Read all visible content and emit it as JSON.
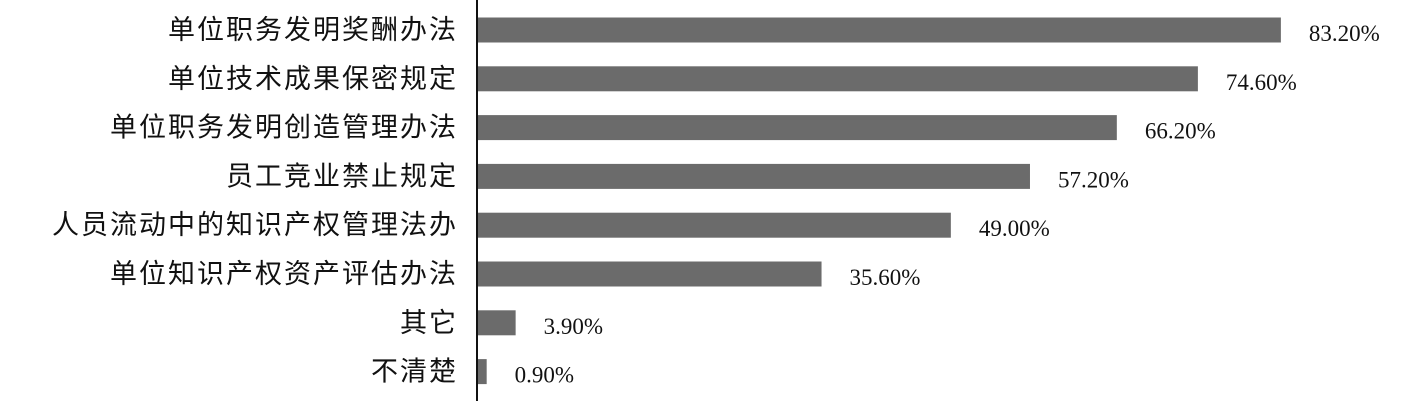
{
  "chart_data": {
    "type": "bar",
    "orientation": "horizontal",
    "categories": [
      "单位职务发明奖酬办法",
      "单位技术成果保密规定",
      "单位职务发明创造管理办法",
      "员工竞业禁止规定",
      "人员流动中的知识产权管理法办",
      "单位知识产权资产评估办法",
      "其它",
      "不清楚"
    ],
    "values": [
      83.2,
      74.6,
      66.2,
      57.2,
      49.0,
      35.6,
      3.9,
      0.9
    ],
    "value_labels": [
      "83.20%",
      "74.60%",
      "66.20%",
      "57.20%",
      "49.00%",
      "35.60%",
      "3.90%",
      "0.90%"
    ],
    "xlim": [
      0,
      100
    ],
    "grid": false,
    "legend": "none",
    "colors": {
      "bar": "#6b6b6b",
      "axis": "#111111",
      "text": "#111111"
    }
  }
}
